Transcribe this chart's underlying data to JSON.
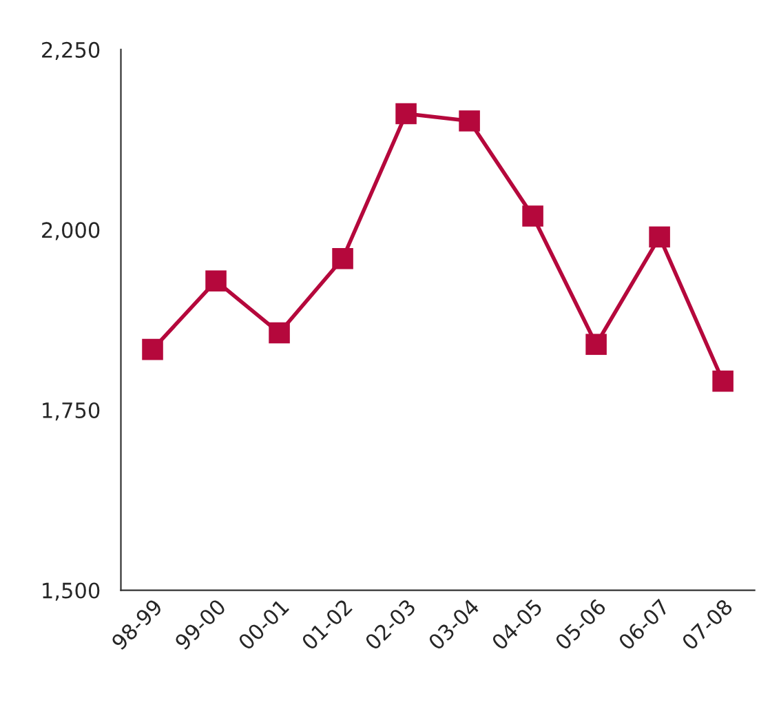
{
  "chart_data": {
    "type": "line",
    "categories": [
      "98-99",
      "99-00",
      "00-01",
      "01-02",
      "02-03",
      "03-04",
      "04-05",
      "05-06",
      "06-07",
      "07-08"
    ],
    "series": [
      {
        "color": "#b5083c",
        "values": [
          1834,
          1929,
          1857,
          1960,
          2161,
          2151,
          2019,
          1841,
          1990,
          1790
        ]
      }
    ],
    "ylim": [
      1500,
      2250
    ],
    "yticks": [
      {
        "value": 1500,
        "label": "1,500"
      },
      {
        "value": 1750,
        "label": "1,750"
      },
      {
        "value": 2000,
        "label": "2,000"
      },
      {
        "value": 2250,
        "label": "2,250"
      }
    ],
    "marker": "square",
    "line_style": "solid",
    "grid": false,
    "legend": false
  }
}
